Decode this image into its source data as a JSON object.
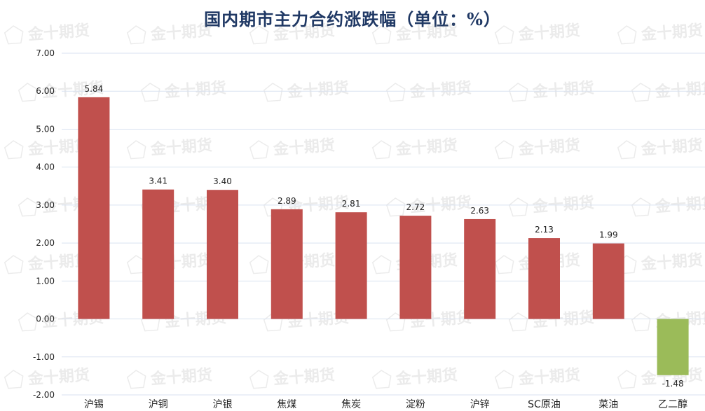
{
  "chart_data": {
    "type": "bar",
    "title": "国内期市主力合约涨跌幅（单位：%）",
    "categories": [
      "沪锡",
      "沪铜",
      "沪银",
      "焦煤",
      "焦炭",
      "淀粉",
      "沪锌",
      "SC原油",
      "菜油",
      "乙二醇"
    ],
    "values": [
      5.84,
      3.41,
      3.4,
      2.89,
      2.81,
      2.72,
      2.63,
      2.13,
      1.99,
      -1.48
    ],
    "value_labels": [
      "5.84",
      "3.41",
      "3.40",
      "2.89",
      "2.81",
      "2.72",
      "2.63",
      "2.13",
      "1.99",
      "-1.48"
    ],
    "ylim": [
      -2.0,
      7.0
    ],
    "y_ticks": [
      "-2.00",
      "-1.00",
      "0.00",
      "1.00",
      "2.00",
      "3.00",
      "4.00",
      "5.00",
      "6.00",
      "7.00"
    ],
    "xlabel": "",
    "ylabel": "",
    "grid": true,
    "colors": {
      "positive": "#c0504d",
      "negative": "#9bbb59",
      "grid": "#d9e2f0",
      "title": "#1f3864"
    }
  },
  "watermark": {
    "text": "金十期货"
  }
}
